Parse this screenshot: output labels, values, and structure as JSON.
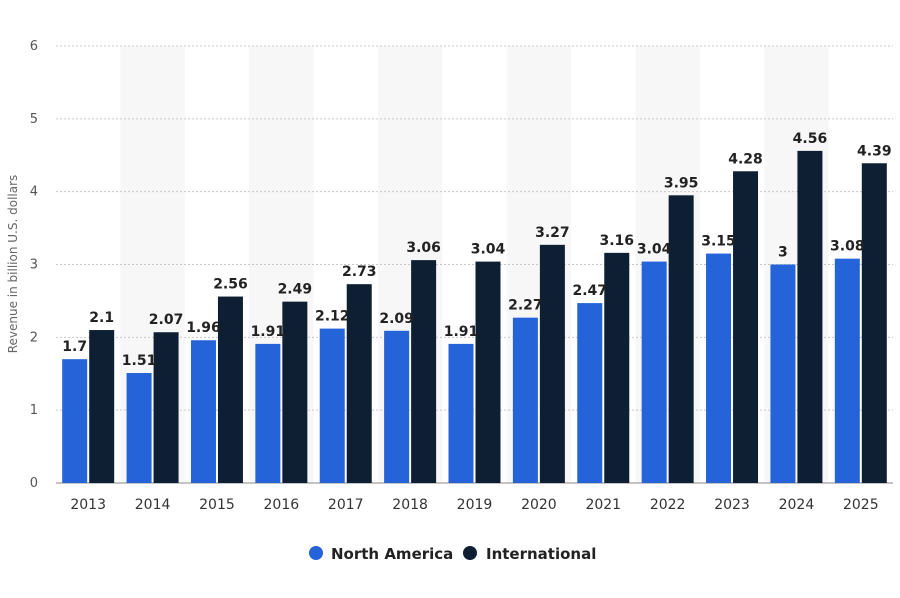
{
  "chart_data": {
    "type": "bar",
    "ylabel": "Revenue in billion U.S. dollars",
    "xlabel": "",
    "ylim": [
      0,
      6
    ],
    "yticks": [
      "0",
      "1",
      "2",
      "3",
      "4",
      "5",
      "6"
    ],
    "grid": true,
    "legend_position": "bottom-center",
    "categories": [
      "2013",
      "2014",
      "2015",
      "2016",
      "2017",
      "2018",
      "2019",
      "2020",
      "2021",
      "2022",
      "2023",
      "2024",
      "2025"
    ],
    "series": [
      {
        "name": "North America",
        "color": "#2563d9",
        "values": [
          1.7,
          1.51,
          1.96,
          1.91,
          2.12,
          2.09,
          1.91,
          2.27,
          2.47,
          3.04,
          3.15,
          3,
          3.08
        ],
        "labels": [
          "1.7",
          "1.51",
          "1.96",
          "1.91",
          "2.12",
          "2.09",
          "1.91",
          "2.27",
          "2.47",
          "3.04",
          "3.15",
          "3",
          "3.08"
        ]
      },
      {
        "name": "International",
        "color": "#0f1f33",
        "values": [
          2.1,
          2.07,
          2.56,
          2.49,
          2.73,
          3.06,
          3.04,
          3.27,
          3.16,
          3.95,
          4.28,
          4.56,
          4.39
        ],
        "labels": [
          "2.1",
          "2.07",
          "2.56",
          "2.49",
          "2.73",
          "3.06",
          "3.04",
          "3.27",
          "3.16",
          "3.95",
          "4.28",
          "4.56",
          "4.39"
        ]
      }
    ]
  }
}
